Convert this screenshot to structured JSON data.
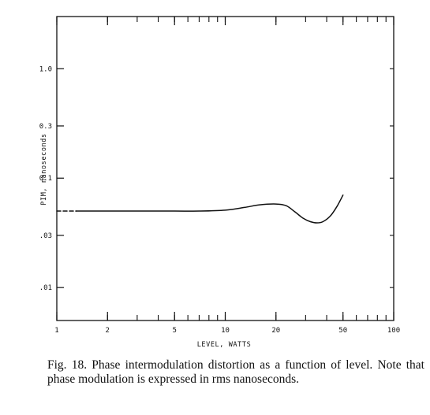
{
  "chart_data": {
    "type": "line",
    "title": "",
    "xlabel": "LEVEL, WATTS",
    "ylabel": "PIM, nanoseconds",
    "x_scale": "log",
    "y_scale": "log",
    "xlim": [
      1,
      100
    ],
    "ylim": [
      0.005,
      3
    ],
    "x_ticks": [
      {
        "value": 1,
        "label": "1"
      },
      {
        "value": 2,
        "label": "2"
      },
      {
        "value": 5,
        "label": "5"
      },
      {
        "value": 10,
        "label": "10"
      },
      {
        "value": 20,
        "label": "20"
      },
      {
        "value": 50,
        "label": "50"
      },
      {
        "value": 100,
        "label": "100"
      }
    ],
    "y_ticks": [
      {
        "value": 0.01,
        "label": ".01"
      },
      {
        "value": 0.03,
        "label": ".03"
      },
      {
        "value": 0.1,
        "label": "0.1"
      },
      {
        "value": 0.3,
        "label": "0.3"
      },
      {
        "value": 1.0,
        "label": "1.0"
      }
    ],
    "grid": false,
    "series": [
      {
        "style": "dashed",
        "x": [
          1.0,
          1.3
        ],
        "y": [
          0.05,
          0.05
        ]
      },
      {
        "style": "solid",
        "x": [
          1.3,
          2,
          3,
          5,
          7,
          10,
          13,
          16,
          20,
          23,
          26,
          29,
          32,
          35,
          38,
          42,
          46,
          50
        ],
        "y": [
          0.05,
          0.05,
          0.05,
          0.05,
          0.05,
          0.051,
          0.054,
          0.057,
          0.058,
          0.056,
          0.049,
          0.043,
          0.04,
          0.039,
          0.04,
          0.045,
          0.055,
          0.07
        ]
      }
    ]
  },
  "caption": "Fig. 18. Phase intermodulation distortion as a function of level. Note that phase modulation is expressed in rms nanoseconds."
}
